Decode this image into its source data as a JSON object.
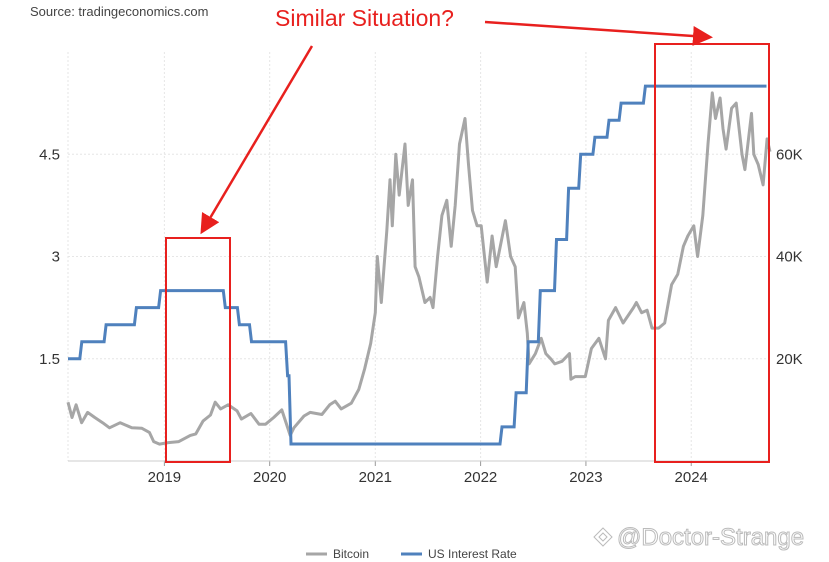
{
  "source": "Source: tradingeconomics.com",
  "annotation": "Similar Situation?",
  "watermark": "@Doctor-Strange",
  "colors": {
    "bitcoin": "#a6a6a6",
    "rate": "#4f81bd",
    "annotation": "#e8201e",
    "grid": "#e6e6e6"
  },
  "chart_data": {
    "type": "line",
    "title": "",
    "grid": true,
    "legend_position": "bottom-center",
    "x_ticks": [
      "2019",
      "2020",
      "2021",
      "2022",
      "2023",
      "2024"
    ],
    "xlim": [
      "2018-02-01",
      "2024-09-30"
    ],
    "y_left": {
      "ticks": [
        "1.5",
        "3",
        "4.5"
      ],
      "ylim": [
        0,
        6.0
      ],
      "label": ""
    },
    "y_right": {
      "ticks": [
        "20K",
        "40K",
        "60K"
      ],
      "ylim": [
        0,
        80000
      ],
      "label": ""
    },
    "series": [
      {
        "name": "Bitcoin",
        "axis": "right",
        "x": [
          "2018-02-01",
          "2018-02-15",
          "2018-03-01",
          "2018-03-20",
          "2018-04-10",
          "2018-05-05",
          "2018-06-01",
          "2018-06-25",
          "2018-08-01",
          "2018-09-10",
          "2018-10-15",
          "2018-11-10",
          "2018-11-25",
          "2018-12-15",
          "2019-01-15",
          "2019-02-20",
          "2019-04-01",
          "2019-04-20",
          "2019-05-15",
          "2019-06-10",
          "2019-06-26",
          "2019-07-15",
          "2019-08-10",
          "2019-09-10",
          "2019-09-25",
          "2019-10-28",
          "2019-11-25",
          "2019-12-18",
          "2020-01-15",
          "2020-02-12",
          "2020-03-12",
          "2020-03-25",
          "2020-04-29",
          "2020-05-20",
          "2020-06-30",
          "2020-07-27",
          "2020-08-15",
          "2020-09-05",
          "2020-10-10",
          "2020-11-05",
          "2020-11-25",
          "2020-12-16",
          "2021-01-01",
          "2021-01-08",
          "2021-01-22",
          "2021-02-10",
          "2021-02-21",
          "2021-03-01",
          "2021-03-13",
          "2021-03-25",
          "2021-04-14",
          "2021-04-25",
          "2021-05-10",
          "2021-05-19",
          "2021-06-01",
          "2021-06-22",
          "2021-07-10",
          "2021-07-20",
          "2021-08-05",
          "2021-08-20",
          "2021-09-06",
          "2021-09-21",
          "2021-10-05",
          "2021-10-20",
          "2021-11-08",
          "2021-11-20",
          "2021-12-04",
          "2021-12-20",
          "2022-01-03",
          "2022-01-24",
          "2022-02-10",
          "2022-02-24",
          "2022-03-28",
          "2022-04-15",
          "2022-05-01",
          "2022-05-12",
          "2022-05-31",
          "2022-06-12",
          "2022-06-18",
          "2022-07-10",
          "2022-07-30",
          "2022-08-15",
          "2022-09-01",
          "2022-09-15",
          "2022-10-10",
          "2022-11-05",
          "2022-11-10",
          "2022-11-25",
          "2022-12-30",
          "2023-01-20",
          "2023-02-15",
          "2023-03-10",
          "2023-03-20",
          "2023-04-14",
          "2023-05-10",
          "2023-06-15",
          "2023-06-25",
          "2023-07-13",
          "2023-08-01",
          "2023-08-18",
          "2023-09-10",
          "2023-10-01",
          "2023-10-25",
          "2023-11-15",
          "2023-12-05",
          "2023-12-20",
          "2024-01-10",
          "2024-01-23",
          "2024-02-10",
          "2024-02-28",
          "2024-03-14",
          "2024-03-25",
          "2024-04-10",
          "2024-04-20",
          "2024-05-01",
          "2024-05-20",
          "2024-06-05",
          "2024-06-25",
          "2024-07-05",
          "2024-07-28",
          "2024-08-05",
          "2024-08-20",
          "2024-09-06",
          "2024-09-20",
          "2024-09-30"
        ],
        "y": [
          11500,
          8500,
          11000,
          7500,
          9500,
          8500,
          7500,
          6500,
          7500,
          6500,
          6400,
          5600,
          3800,
          3300,
          3600,
          3800,
          5000,
          5300,
          7800,
          9000,
          11500,
          10200,
          11000,
          9800,
          8200,
          9300,
          7200,
          7200,
          8500,
          10000,
          5000,
          6500,
          8800,
          9500,
          9100,
          11000,
          11700,
          10200,
          11300,
          14000,
          18000,
          23000,
          29000,
          40000,
          31000,
          45000,
          55000,
          46000,
          60000,
          52000,
          62000,
          50000,
          55000,
          38000,
          36000,
          31000,
          32000,
          30000,
          40000,
          48000,
          51000,
          42000,
          50000,
          62000,
          67000,
          58000,
          49000,
          46000,
          46000,
          35000,
          44000,
          38000,
          47000,
          40000,
          38000,
          28000,
          31000,
          25000,
          19000,
          21000,
          24000,
          21000,
          20000,
          19000,
          19500,
          21000,
          16000,
          16500,
          16500,
          22000,
          24000,
          20000,
          27500,
          30000,
          27000,
          30000,
          31000,
          29000,
          29500,
          26000,
          26000,
          27000,
          34500,
          36500,
          42000,
          44000,
          46000,
          40000,
          48000,
          62000,
          72000,
          67000,
          71000,
          65000,
          61000,
          69000,
          70000,
          60000,
          57000,
          68000,
          60000,
          58000,
          54000,
          63000,
          60500
        ]
      },
      {
        "name": "US Interest Rate",
        "axis": "left",
        "x": [
          "2018-02-01",
          "2018-03-21",
          "2018-06-13",
          "2018-09-26",
          "2018-12-19",
          "2019-07-31",
          "2019-09-18",
          "2019-10-30",
          "2020-03-03",
          "2020-03-15",
          "2022-03-16",
          "2022-05-04",
          "2022-06-15",
          "2022-07-27",
          "2022-09-21",
          "2022-11-02",
          "2022-12-14",
          "2023-02-01",
          "2023-03-22",
          "2023-05-03",
          "2023-07-26",
          "2024-09-18"
        ],
        "y": [
          1.5,
          1.75,
          2.0,
          2.25,
          2.5,
          2.25,
          2.0,
          1.75,
          1.25,
          0.25,
          0.5,
          1.0,
          1.75,
          2.5,
          3.25,
          4.0,
          4.5,
          4.75,
          5.0,
          5.25,
          5.5,
          5.5
        ]
      }
    ]
  }
}
